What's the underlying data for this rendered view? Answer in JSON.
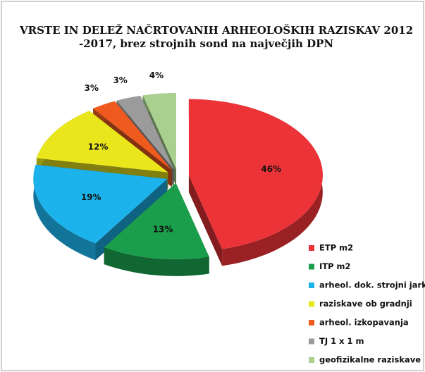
{
  "chart_data": {
    "type": "pie",
    "title": [
      "VRSTE IN DELEŽ NAČRTOVANIH ARHEOLOŠKIH RAZISKAV 2012",
      "-2017, brez strojnih sond na največjih DPN"
    ],
    "categories": [
      "ETP m2",
      "ITP m2",
      "arheol. dok. strojni jarki",
      "raziskave ob gradnji",
      "arheol. izkopavanja",
      "TJ 1 x 1 m",
      "geofizikalne raziskave"
    ],
    "values": [
      46,
      13,
      19,
      12,
      3,
      3,
      4
    ],
    "value_labels": [
      "46%",
      "13%",
      "19%",
      "12%",
      "3%",
      "3%",
      "4%"
    ],
    "colors": [
      "#ec3338",
      "#1a9e4b",
      "#1cb3ec",
      "#e9e61c",
      "#ef5a1e",
      "#9b9b9b",
      "#a9d08e"
    ],
    "legend": "right"
  }
}
